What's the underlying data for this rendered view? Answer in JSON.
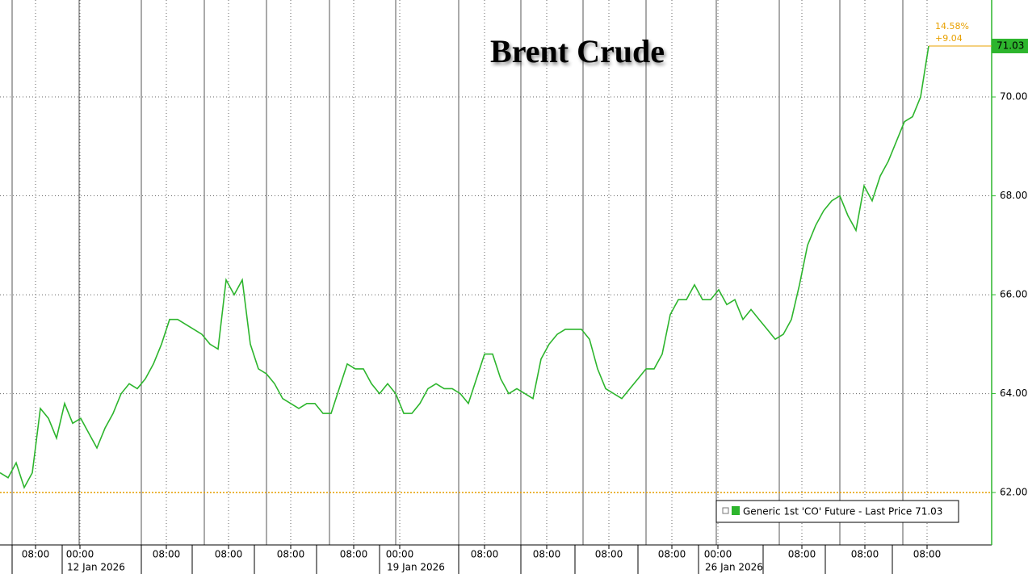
{
  "chart_data": {
    "type": "line",
    "title": "Brent Crude",
    "x": [
      0,
      1,
      2,
      3,
      4,
      5,
      6,
      7,
      8,
      9,
      10,
      11,
      12,
      13,
      14,
      15,
      16,
      17,
      18,
      19,
      20,
      21,
      22,
      23,
      24,
      25,
      26,
      27,
      28,
      29,
      30,
      31,
      32,
      33,
      34,
      35,
      36,
      37,
      38,
      39,
      40,
      41,
      42,
      43,
      44,
      45,
      46,
      47,
      48,
      49,
      50,
      51,
      52,
      53,
      54,
      55,
      56,
      57,
      58,
      59,
      60,
      61,
      62,
      63,
      64,
      65,
      66,
      67,
      68,
      69,
      70,
      71,
      72,
      73,
      74,
      75,
      76,
      77,
      78,
      79,
      80,
      81,
      82,
      83,
      84,
      85,
      86,
      87,
      88,
      89,
      90,
      91,
      92,
      93,
      94,
      95,
      96,
      97,
      98,
      99,
      100,
      101,
      102,
      103,
      104,
      105,
      106,
      107,
      108,
      109,
      110,
      111,
      112,
      113,
      114,
      115
    ],
    "series": [
      {
        "name": "Generic 1st 'CO' Future - Last Price 71.03",
        "color": "#2db52d",
        "values": [
          62.4,
          62.3,
          62.6,
          62.1,
          62.4,
          63.7,
          63.5,
          63.1,
          63.8,
          63.4,
          63.5,
          63.2,
          62.9,
          63.3,
          63.6,
          64.0,
          64.2,
          64.1,
          64.3,
          64.6,
          65.0,
          65.5,
          65.5,
          65.4,
          65.3,
          65.2,
          65.0,
          64.9,
          66.3,
          66.0,
          66.3,
          65.0,
          64.5,
          64.4,
          64.2,
          63.9,
          63.8,
          63.7,
          63.8,
          63.8,
          63.6,
          63.6,
          64.1,
          64.6,
          64.5,
          64.5,
          64.2,
          64.0,
          64.2,
          64.0,
          63.6,
          63.6,
          63.8,
          64.1,
          64.2,
          64.1,
          64.1,
          64.0,
          63.8,
          64.3,
          64.8,
          64.8,
          64.3,
          64.0,
          64.1,
          64.0,
          63.9,
          64.7,
          65.0,
          65.2,
          65.3,
          65.3,
          65.3,
          65.1,
          64.5,
          64.1,
          64.0,
          63.9,
          64.1,
          64.3,
          64.5,
          64.5,
          64.8,
          65.6,
          65.9,
          65.9,
          66.2,
          65.9,
          65.9,
          66.1,
          65.8,
          65.9,
          65.5,
          65.7,
          65.5,
          65.3,
          65.1,
          65.2,
          65.5,
          66.2,
          67.0,
          67.4,
          67.7,
          67.9,
          68.0,
          67.6,
          67.3,
          68.2,
          67.9,
          68.4,
          68.7,
          69.1,
          69.5,
          69.6,
          70.0,
          71.03
        ]
      }
    ],
    "xlim": [
      0,
      122.8
    ],
    "xticks": [
      {
        "value": 4.4,
        "label": "08:00"
      },
      {
        "value": 9.9,
        "label": "00:00",
        "date": "12 Jan 2026"
      },
      {
        "value": 20.6,
        "label": "08:00"
      },
      {
        "value": 28.3,
        "label": "08:00"
      },
      {
        "value": 36.0,
        "label": "08:00"
      },
      {
        "value": 43.8,
        "label": "08:00"
      },
      {
        "value": 49.5,
        "label": "00:00",
        "date": "19 Jan 2026"
      },
      {
        "value": 60.0,
        "label": "08:00"
      },
      {
        "value": 67.7,
        "label": "08:00"
      },
      {
        "value": 75.4,
        "label": "08:00"
      },
      {
        "value": 83.2,
        "label": "08:00"
      },
      {
        "value": 88.9,
        "label": "00:00",
        "date": "26 Jan 2026"
      },
      {
        "value": 99.3,
        "label": "08:00"
      },
      {
        "value": 107.1,
        "label": "08:00"
      },
      {
        "value": 114.8,
        "label": "08:00"
      }
    ],
    "ylim": [
      60.94,
      71.96
    ],
    "yticks": [
      {
        "value": 62,
        "label": "62.00"
      },
      {
        "value": 64,
        "label": "64.00"
      },
      {
        "value": 66,
        "label": "66.00"
      },
      {
        "value": 68,
        "label": "68.00"
      },
      {
        "value": 70,
        "label": "70.00"
      }
    ],
    "reference_line": 62,
    "reference_color": "#e8a000",
    "annotations": [
      "14.58%",
      "+9.04"
    ],
    "grid": true
  }
}
